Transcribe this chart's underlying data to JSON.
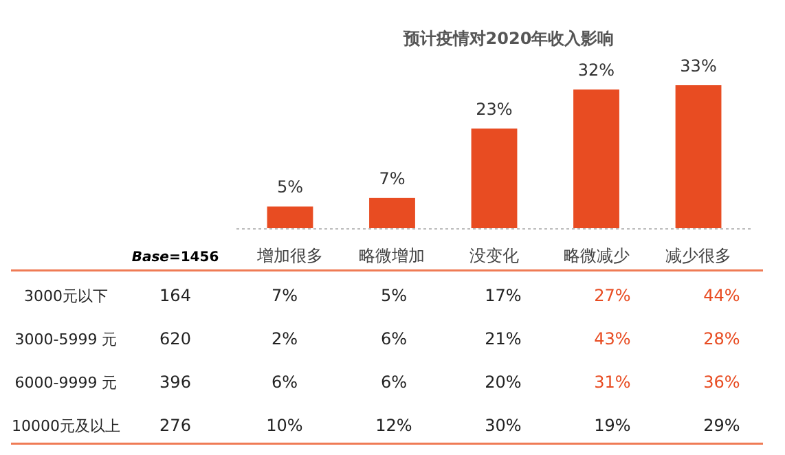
{
  "chart_data": [
    {
      "type": "bar",
      "title": "预计疫情对2020年收入影响",
      "categories": [
        "增加很多",
        "略微增加",
        "没变化",
        "略微减少",
        "减少很多"
      ],
      "values": [
        5,
        7,
        23,
        32,
        33
      ],
      "color": "#e84c22",
      "value_labels": [
        "5%",
        "7%",
        "23%",
        "32%",
        "33%"
      ]
    },
    {
      "type": "other",
      "categories": [
        "Base=1456",
        null,
        null,
        null,
        null,
        null
      ],
      "y_categories": [
        "3000元以下",
        "3000-5999 元",
        "6000-9999 元",
        "10000元及以上"
      ],
      "cells": [
        [
          "164",
          "7%",
          "5%",
          "17%",
          "27%",
          "44%"
        ],
        [
          "620",
          "2%",
          "6%",
          "21%",
          "43%",
          "28%"
        ],
        [
          "396",
          "6%",
          "6%",
          "20%",
          "31%",
          "36%"
        ],
        [
          "276",
          "10%",
          "12%",
          "30%",
          "19%",
          "29%"
        ]
      ],
      "colors": [
        [
          null,
          null,
          null,
          null,
          "#e84c22",
          "#e84c22"
        ],
        [
          null,
          null,
          null,
          null,
          "#e84c22",
          "#e84c22"
        ],
        [
          null,
          null,
          null,
          null,
          "#e84c22",
          "#e84c22"
        ],
        [
          null,
          null,
          null,
          null,
          null,
          null
        ]
      ]
    }
  ]
}
